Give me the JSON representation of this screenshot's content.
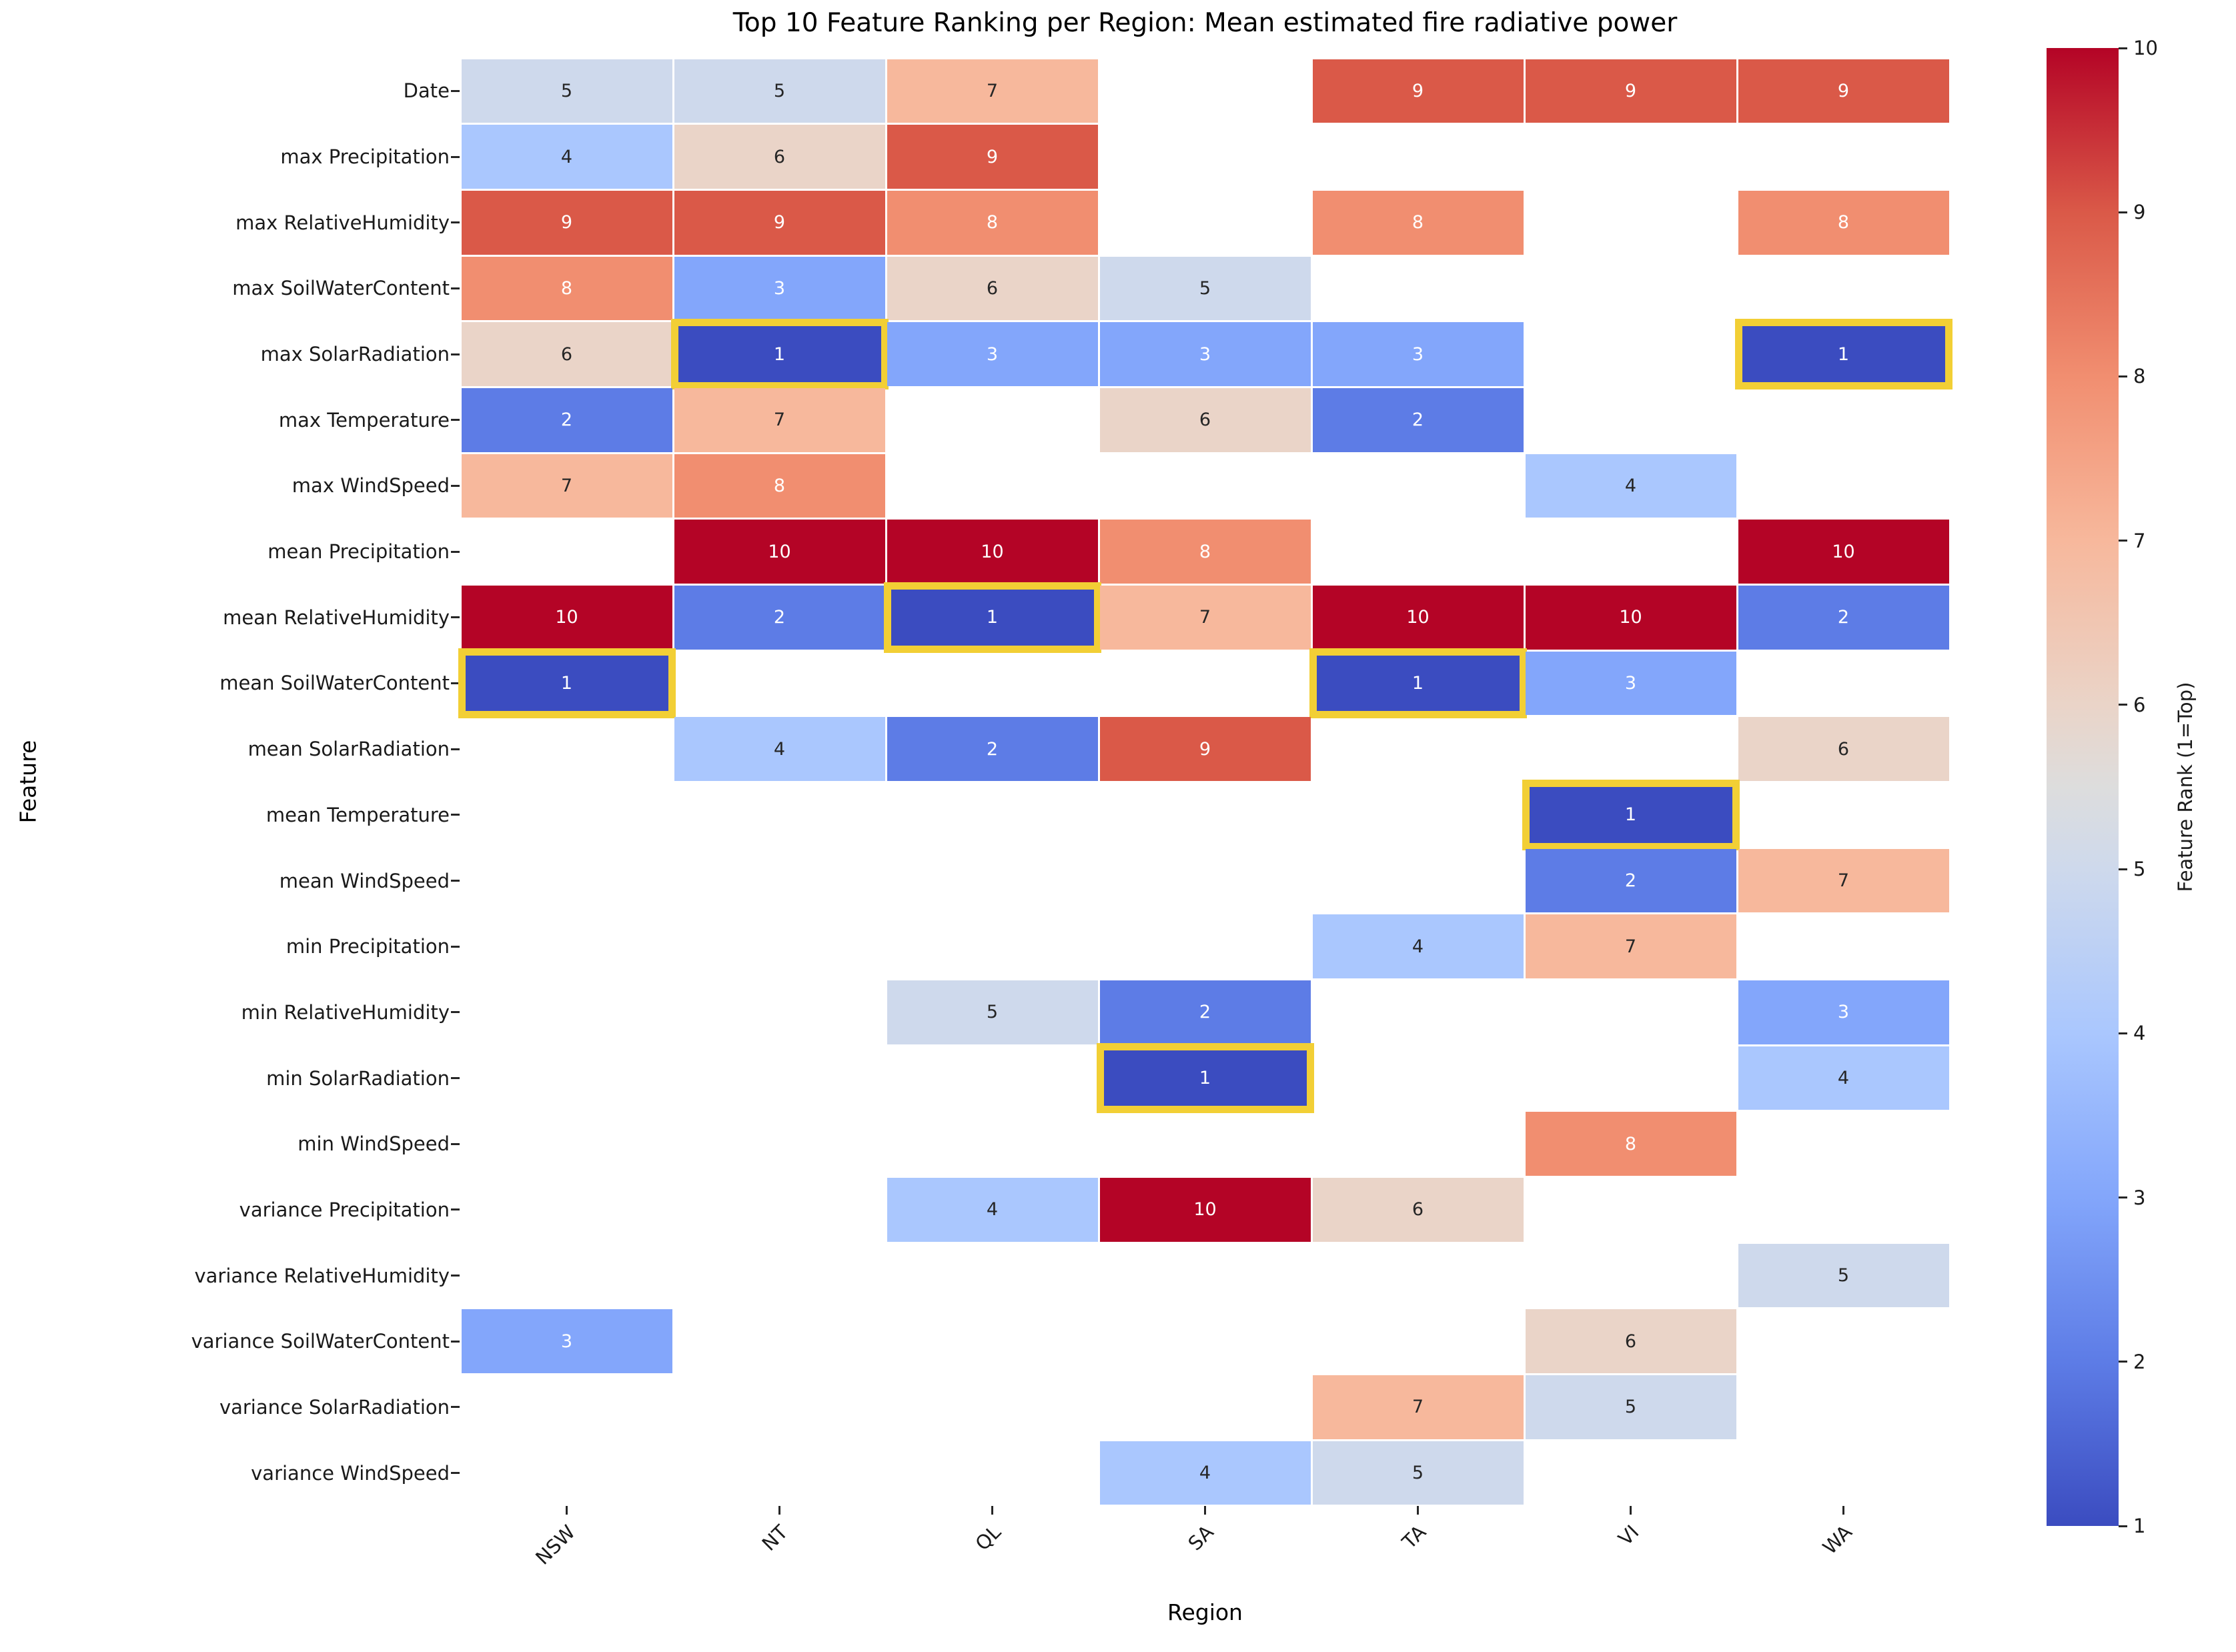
{
  "title": "Top 10 Feature Ranking per Region: Mean estimated fire radiative power",
  "chart_data": {
    "type": "heatmap",
    "title": "Top 10 Feature Ranking per Region: Mean estimated fire radiative power",
    "xlabel": "Region",
    "ylabel": "Feature",
    "categories": [
      "NSW",
      "NT",
      "QL",
      "SA",
      "TA",
      "VI",
      "WA"
    ],
    "rows": [
      "Date",
      "max Precipitation",
      "max RelativeHumidity",
      "max SoilWaterContent",
      "max SolarRadiation",
      "max Temperature",
      "max WindSpeed",
      "mean Precipitation",
      "mean RelativeHumidity",
      "mean SoilWaterContent",
      "mean SolarRadiation",
      "mean Temperature",
      "mean WindSpeed",
      "min Precipitation",
      "min RelativeHumidity",
      "min SolarRadiation",
      "min WindSpeed",
      "variance Precipitation",
      "variance RelativeHumidity",
      "variance SoilWaterContent",
      "variance SolarRadiation",
      "variance WindSpeed"
    ],
    "values": [
      [
        5,
        5,
        7,
        null,
        9,
        9,
        9
      ],
      [
        4,
        6,
        9,
        null,
        null,
        null,
        null
      ],
      [
        9,
        9,
        8,
        null,
        8,
        null,
        8
      ],
      [
        8,
        3,
        6,
        5,
        null,
        null,
        null
      ],
      [
        6,
        1,
        3,
        3,
        3,
        null,
        1
      ],
      [
        2,
        7,
        null,
        6,
        2,
        null,
        null
      ],
      [
        7,
        8,
        null,
        null,
        null,
        4,
        null
      ],
      [
        null,
        10,
        10,
        8,
        null,
        null,
        10
      ],
      [
        10,
        2,
        1,
        7,
        10,
        10,
        2
      ],
      [
        1,
        null,
        null,
        null,
        1,
        3,
        null
      ],
      [
        null,
        4,
        2,
        9,
        null,
        null,
        6
      ],
      [
        null,
        null,
        null,
        null,
        null,
        1,
        null
      ],
      [
        null,
        null,
        null,
        null,
        null,
        2,
        7
      ],
      [
        null,
        null,
        null,
        null,
        4,
        7,
        null
      ],
      [
        null,
        null,
        5,
        2,
        null,
        null,
        3
      ],
      [
        null,
        null,
        null,
        1,
        null,
        null,
        4
      ],
      [
        null,
        null,
        null,
        null,
        null,
        8,
        null
      ],
      [
        null,
        null,
        4,
        10,
        6,
        null,
        null
      ],
      [
        null,
        null,
        null,
        null,
        null,
        null,
        5
      ],
      [
        3,
        null,
        null,
        null,
        null,
        6,
        null
      ],
      [
        null,
        null,
        null,
        null,
        7,
        5,
        null
      ],
      [
        null,
        null,
        null,
        4,
        5,
        null,
        null
      ]
    ],
    "colorbar": {
      "label": "Feature Rank (1=Top)",
      "min": 1,
      "max": 10,
      "ticks": [
        10,
        9,
        8,
        7,
        6,
        5,
        4,
        3,
        2,
        1
      ]
    },
    "colormap_name": "coolwarm",
    "rank_colors": {
      "1": "#3b4cc0",
      "2": "#5d7ce6",
      "3": "#83a6fb",
      "4": "#aac7fe",
      "5": "#ced9ec",
      "6": "#ead4c8",
      "7": "#f7b89c",
      "8": "#f18e70",
      "9": "#da5948",
      "10": "#b40426"
    },
    "gradient_stops": [
      {
        "v": 10,
        "color": "#b40426"
      },
      {
        "v": 9,
        "color": "#da5948"
      },
      {
        "v": 8,
        "color": "#f18e70"
      },
      {
        "v": 7,
        "color": "#f7b89c"
      },
      {
        "v": 6,
        "color": "#ead4c8"
      },
      {
        "v": 5.5,
        "color": "#dddddd"
      },
      {
        "v": 5,
        "color": "#ced9ec"
      },
      {
        "v": 4,
        "color": "#aac7fe"
      },
      {
        "v": 3,
        "color": "#83a6fb"
      },
      {
        "v": 2,
        "color": "#5d7ce6"
      },
      {
        "v": 1,
        "color": "#3b4cc0"
      }
    ],
    "light_text_ranks": [
      1,
      2,
      3,
      8,
      9,
      10
    ],
    "annot_dark_text_color": "#262626",
    "annot_light_text_color": "#ffffff",
    "highlight": {
      "rank": 1,
      "color": "#f2cf35"
    },
    "grid_on": false,
    "legend_position": "right-colorbar"
  }
}
